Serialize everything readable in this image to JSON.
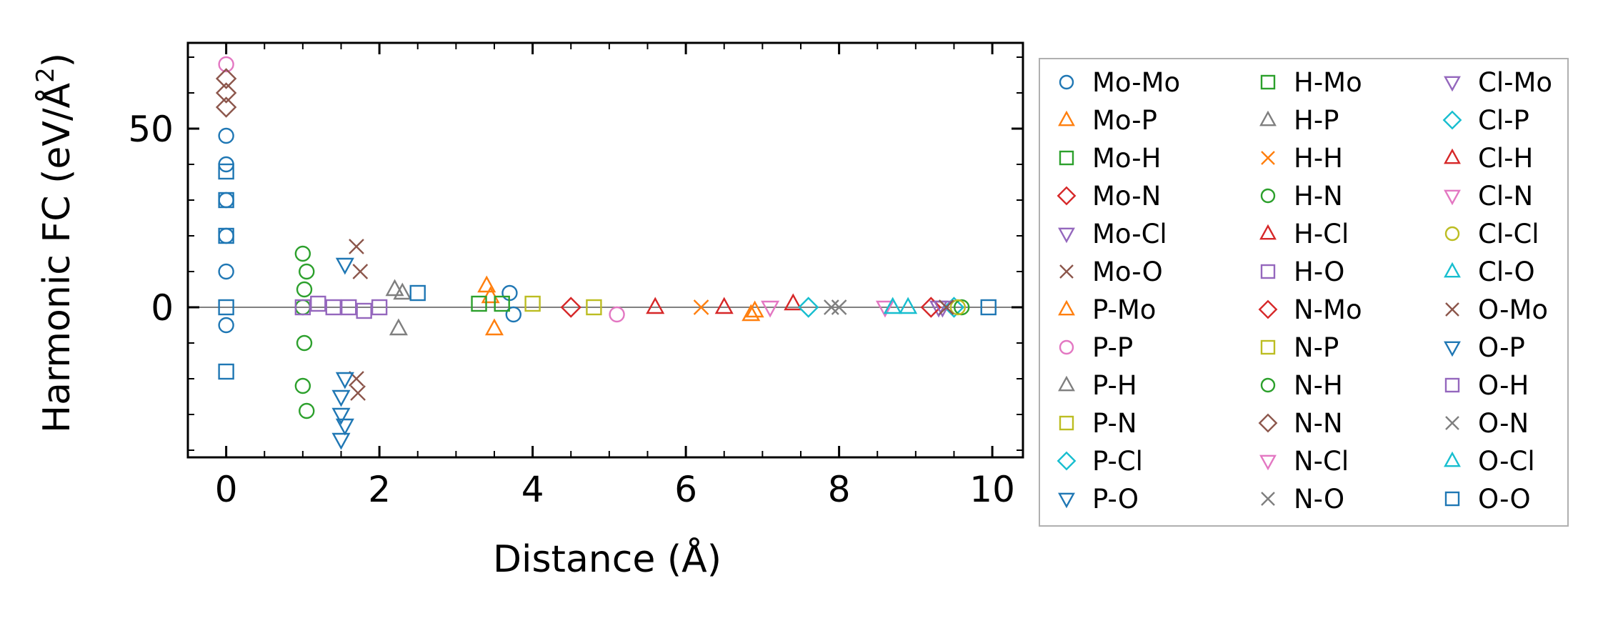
{
  "chart_data": {
    "type": "scatter",
    "title": "",
    "xlabel": "Distance (Å)",
    "ylabel": "Harmonic FC (eV/Å²)",
    "ylabel_main": "Harmonic FC (eV/Å",
    "ylabel_sup": "2",
    "ylabel_tail": ")",
    "xlim": [
      -0.5,
      10.4
    ],
    "ylim": [
      -42,
      74
    ],
    "xticks": [
      0,
      2,
      4,
      6,
      8,
      10
    ],
    "xtick_labels": [
      "0",
      "2",
      "4",
      "6",
      "8",
      "10"
    ],
    "yticks": [
      0,
      50
    ],
    "ytick_labels": [
      "0",
      "50"
    ],
    "grid": false,
    "zero_line": true,
    "legend_position": "outside-right",
    "legend_columns": 3,
    "series": [
      {
        "name": "Mo-Mo",
        "marker": "circle",
        "color": "#1f77b4",
        "x": [
          0,
          0,
          0,
          0,
          0,
          0,
          3.7,
          3.75
        ],
        "y": [
          48,
          40,
          30,
          20,
          10,
          -5,
          4,
          -2
        ]
      },
      {
        "name": "Mo-P",
        "marker": "triangle-up",
        "color": "#ff7f0e",
        "x": [
          3.4,
          3.45,
          3.5,
          6.85
        ],
        "y": [
          6,
          3,
          -6,
          -2
        ]
      },
      {
        "name": "Mo-H",
        "marker": "square",
        "color": "#2ca02c",
        "x": [
          3.6
        ],
        "y": [
          1
        ]
      },
      {
        "name": "Mo-N",
        "marker": "diamond",
        "color": "#d62728",
        "x": [
          4.5
        ],
        "y": [
          0
        ]
      },
      {
        "name": "Mo-Cl",
        "marker": "triangle-down",
        "color": "#9467bd",
        "x": [
          9.3
        ],
        "y": [
          0
        ]
      },
      {
        "name": "Mo-O",
        "marker": "x",
        "color": "#8c564b",
        "x": [
          1.7,
          1.75,
          1.7,
          1.72
        ],
        "y": [
          17,
          10,
          -20,
          -24
        ]
      },
      {
        "name": "P-Mo",
        "marker": "triangle-up",
        "color": "#ff7f0e",
        "x": [
          6.9
        ],
        "y": [
          -1
        ]
      },
      {
        "name": "P-P",
        "marker": "circle",
        "color": "#e377c2",
        "x": [
          0,
          5.1
        ],
        "y": [
          68,
          -2
        ]
      },
      {
        "name": "P-H",
        "marker": "triangle-up",
        "color": "#7f7f7f",
        "x": [
          2.2,
          2.25
        ],
        "y": [
          5,
          -6
        ]
      },
      {
        "name": "P-N",
        "marker": "square",
        "color": "#bcbd22",
        "x": [
          4.0
        ],
        "y": [
          1
        ]
      },
      {
        "name": "P-Cl",
        "marker": "diamond",
        "color": "#17becf",
        "x": [
          9.5
        ],
        "y": [
          0
        ]
      },
      {
        "name": "P-O",
        "marker": "triangle-down",
        "color": "#1f77b4",
        "x": [
          1.5,
          1.55,
          1.5,
          1.55
        ],
        "y": [
          -37,
          -33,
          -25,
          12
        ]
      },
      {
        "name": "H-Mo",
        "marker": "square",
        "color": "#2ca02c",
        "x": [
          3.3
        ],
        "y": [
          1
        ]
      },
      {
        "name": "H-P",
        "marker": "triangle-up",
        "color": "#7f7f7f",
        "x": [
          2.3
        ],
        "y": [
          4
        ]
      },
      {
        "name": "H-H",
        "marker": "x",
        "color": "#ff7f0e",
        "x": [
          6.2
        ],
        "y": [
          0
        ]
      },
      {
        "name": "H-N",
        "marker": "circle",
        "color": "#2ca02c",
        "x": [
          1.0,
          1.05,
          1.0,
          1.02,
          1.0,
          1.05
        ],
        "y": [
          15,
          10,
          0,
          -10,
          -22,
          -29
        ]
      },
      {
        "name": "H-Cl",
        "marker": "triangle-up",
        "color": "#d62728",
        "x": [
          5.6,
          7.4
        ],
        "y": [
          0,
          1
        ]
      },
      {
        "name": "H-O",
        "marker": "square",
        "color": "#9467bd",
        "x": [
          1.0,
          1.2,
          1.6,
          2.0
        ],
        "y": [
          0,
          1,
          0,
          0
        ]
      },
      {
        "name": "N-Mo",
        "marker": "diamond",
        "color": "#d62728",
        "x": [
          9.2
        ],
        "y": [
          0
        ]
      },
      {
        "name": "N-P",
        "marker": "square",
        "color": "#bcbd22",
        "x": [
          4.8
        ],
        "y": [
          0
        ]
      },
      {
        "name": "N-H",
        "marker": "circle",
        "color": "#2ca02c",
        "x": [
          1.02,
          9.6
        ],
        "y": [
          5,
          0
        ]
      },
      {
        "name": "N-N",
        "marker": "diamond",
        "color": "#8c564b",
        "x": [
          0,
          0,
          0
        ],
        "y": [
          64,
          60,
          56
        ]
      },
      {
        "name": "N-Cl",
        "marker": "triangle-down",
        "color": "#e377c2",
        "x": [
          8.6
        ],
        "y": [
          0
        ]
      },
      {
        "name": "N-O",
        "marker": "x",
        "color": "#7f7f7f",
        "x": [
          8.0
        ],
        "y": [
          0
        ]
      },
      {
        "name": "Cl-Mo",
        "marker": "triangle-down",
        "color": "#9467bd",
        "x": [
          9.35
        ],
        "y": [
          0
        ]
      },
      {
        "name": "Cl-P",
        "marker": "diamond",
        "color": "#17becf",
        "x": [
          7.6
        ],
        "y": [
          0
        ]
      },
      {
        "name": "Cl-H",
        "marker": "triangle-up",
        "color": "#d62728",
        "x": [
          6.5
        ],
        "y": [
          0
        ]
      },
      {
        "name": "Cl-N",
        "marker": "triangle-down",
        "color": "#e377c2",
        "x": [
          7.1
        ],
        "y": [
          0
        ]
      },
      {
        "name": "Cl-Cl",
        "marker": "circle",
        "color": "#bcbd22",
        "x": [
          9.55
        ],
        "y": [
          0
        ]
      },
      {
        "name": "Cl-O",
        "marker": "triangle-up",
        "color": "#17becf",
        "x": [
          8.9
        ],
        "y": [
          0
        ]
      },
      {
        "name": "O-Mo",
        "marker": "x",
        "color": "#8c564b",
        "x": [
          9.4
        ],
        "y": [
          0
        ]
      },
      {
        "name": "O-P",
        "marker": "triangle-down",
        "color": "#1f77b4",
        "x": [
          1.5,
          1.55
        ],
        "y": [
          -30,
          -20
        ]
      },
      {
        "name": "O-H",
        "marker": "square",
        "color": "#9467bd",
        "x": [
          1.4,
          1.8
        ],
        "y": [
          0,
          -1
        ]
      },
      {
        "name": "O-N",
        "marker": "x",
        "color": "#7f7f7f",
        "x": [
          7.9
        ],
        "y": [
          0
        ]
      },
      {
        "name": "O-Cl",
        "marker": "triangle-up",
        "color": "#17becf",
        "x": [
          8.7
        ],
        "y": [
          0
        ]
      },
      {
        "name": "O-O",
        "marker": "square",
        "color": "#1f77b4",
        "x": [
          0,
          0,
          0,
          0,
          0,
          2.5,
          9.95
        ],
        "y": [
          38,
          30,
          20,
          0,
          -18,
          4,
          0
        ]
      }
    ]
  }
}
